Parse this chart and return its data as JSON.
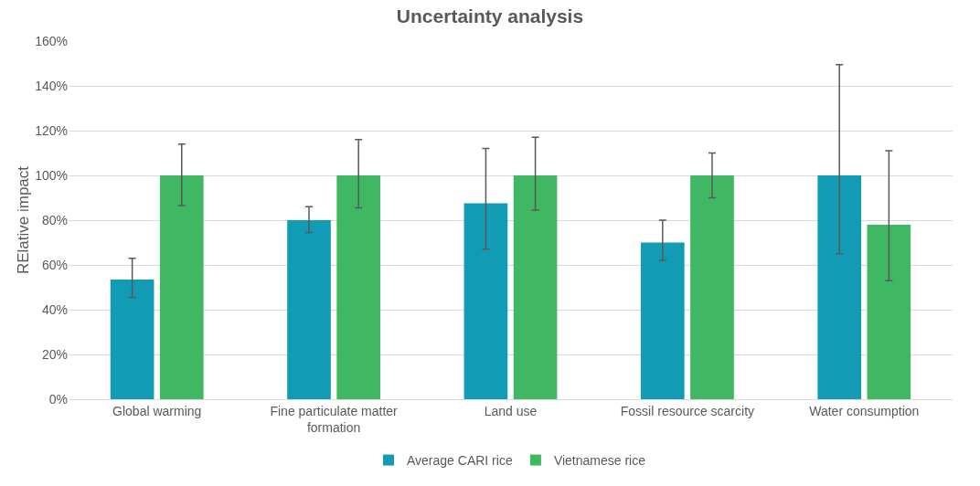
{
  "chart_data": {
    "type": "bar",
    "title": "Uncertainty analysis",
    "ylabel": "RElative impact",
    "categories": [
      "Global warming",
      "Fine particulate matter formation",
      "Land use",
      "Fossil resource scarcity",
      "Water consumption"
    ],
    "series": [
      {
        "name": "Average CARI rice",
        "color": "#129bb5",
        "values": [
          53.5,
          80,
          87.5,
          70,
          100
        ],
        "errors": [
          [
            45.5,
            63
          ],
          [
            74.5,
            86
          ],
          [
            67,
            112
          ],
          [
            62,
            80
          ],
          [
            65,
            149.5
          ]
        ]
      },
      {
        "name": "Vietnamese rice",
        "color": "#3fb763",
        "values": [
          100,
          100,
          100,
          100,
          78
        ],
        "errors": [
          [
            86.5,
            114
          ],
          [
            85.5,
            116
          ],
          [
            84.5,
            117
          ],
          [
            90,
            110
          ],
          [
            53,
            111
          ]
        ]
      }
    ],
    "ylim": [
      0,
      160
    ],
    "yticks": [
      {
        "value": 0,
        "label": "0%"
      },
      {
        "value": 20,
        "label": "20%"
      },
      {
        "value": 40,
        "label": "40%"
      },
      {
        "value": 60,
        "label": "60%"
      },
      {
        "value": 80,
        "label": "80%"
      },
      {
        "value": 100,
        "label": "100%"
      },
      {
        "value": 120,
        "label": "120%"
      },
      {
        "value": 140,
        "label": "140%"
      },
      {
        "value": 160,
        "label": "160%"
      }
    ],
    "grid": "y",
    "legend": "bottom"
  }
}
